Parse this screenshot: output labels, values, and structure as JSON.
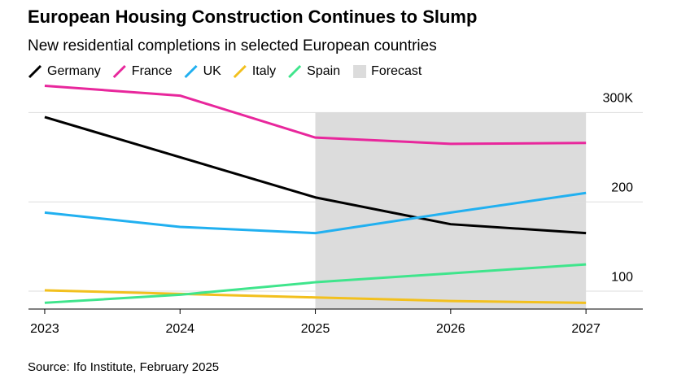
{
  "chart_data": {
    "type": "line",
    "title": "European Housing Construction Continues to Slump",
    "subtitle": "New residential completions in selected European countries",
    "source": "Source: Ifo Institute, February 2025",
    "x": [
      2023,
      2024,
      2025,
      2026,
      2027
    ],
    "xlim": [
      2022.88,
      2027.42
    ],
    "xticks": [
      2023,
      2024,
      2025,
      2026,
      2027
    ],
    "ylim": [
      80,
      335
    ],
    "yticks": [
      {
        "value": 300,
        "label": "300K"
      },
      200,
      100
    ],
    "grid": true,
    "forecast": {
      "label": "Forecast",
      "range": [
        2025,
        2027
      ],
      "color": "#dcdcdc"
    },
    "series": [
      {
        "name": "Germany",
        "color": "#000000",
        "values": [
          295,
          250,
          205,
          175,
          165
        ]
      },
      {
        "name": "France",
        "color": "#e8279c",
        "values": [
          330,
          319,
          272,
          265,
          266
        ]
      },
      {
        "name": "UK",
        "color": "#21b0f0",
        "values": [
          188,
          172,
          165,
          188,
          210
        ]
      },
      {
        "name": "Italy",
        "color": "#f2c01e",
        "values": [
          101,
          97,
          93,
          89,
          87
        ]
      },
      {
        "name": "Spain",
        "color": "#3fe58c",
        "values": [
          87,
          96,
          110,
          120,
          130
        ]
      }
    ]
  }
}
